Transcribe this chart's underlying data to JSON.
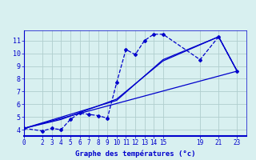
{
  "title": "Graphe des températures (°c)",
  "bg_color": "#d8f0f0",
  "line_color": "#0000cc",
  "grid_color": "#b0cece",
  "xlim": [
    0,
    24
  ],
  "ylim": [
    3.5,
    11.8
  ],
  "xticks": [
    0,
    2,
    3,
    4,
    5,
    6,
    7,
    8,
    9,
    10,
    11,
    12,
    13,
    14,
    15,
    19,
    21,
    23
  ],
  "yticks": [
    4,
    5,
    6,
    7,
    8,
    9,
    10,
    11
  ],
  "series": [
    {
      "x": [
        0,
        2,
        3,
        4,
        5,
        6,
        7,
        8,
        9,
        10,
        11,
        12,
        13,
        14,
        15,
        19,
        21,
        23
      ],
      "y": [
        4.1,
        3.9,
        4.1,
        4.0,
        4.8,
        5.3,
        5.2,
        5.1,
        4.9,
        7.7,
        10.3,
        9.9,
        11.0,
        11.5,
        11.5,
        9.5,
        11.3,
        8.6
      ],
      "linestyle": "--",
      "marker": "D",
      "markersize": 2.0,
      "linewidth": 0.9
    },
    {
      "x": [
        0,
        23
      ],
      "y": [
        4.1,
        8.6
      ],
      "linestyle": "-",
      "marker": null,
      "markersize": 0,
      "linewidth": 0.9
    },
    {
      "x": [
        0,
        10,
        15,
        21,
        23
      ],
      "y": [
        4.1,
        6.3,
        9.5,
        11.3,
        8.6
      ],
      "linestyle": "-",
      "marker": null,
      "markersize": 0,
      "linewidth": 0.9
    },
    {
      "x": [
        0,
        4,
        10,
        15,
        21,
        23
      ],
      "y": [
        4.1,
        4.8,
        6.4,
        9.4,
        11.3,
        8.6
      ],
      "linestyle": "-",
      "marker": null,
      "markersize": 0,
      "linewidth": 0.9
    }
  ]
}
